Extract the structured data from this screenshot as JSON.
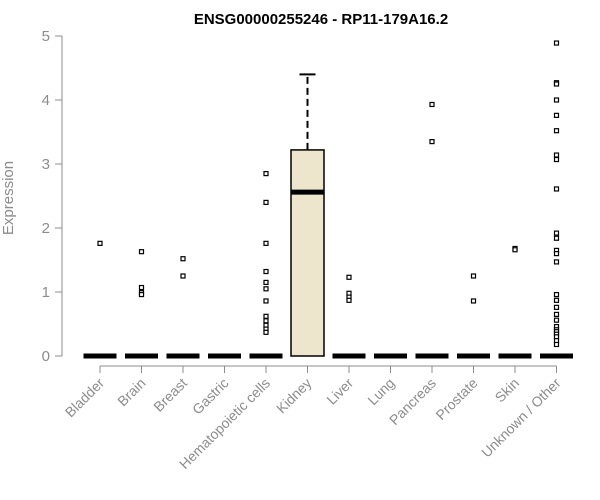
{
  "chart_data": {
    "type": "box",
    "title": "ENSG00000255246 - RP11-179A16.2",
    "ylabel": "Expression",
    "xlabel": "",
    "ylim": [
      0,
      5
    ],
    "yticks": [
      0,
      1,
      2,
      3,
      4,
      5
    ],
    "grid": false,
    "categories": [
      "Bladder",
      "Brain",
      "Breast",
      "Gastric",
      "Hematopoietic cells",
      "Kidney",
      "Liver",
      "Lung",
      "Pancreas",
      "Prostate",
      "Skin",
      "Unknown / Other"
    ],
    "boxes": [
      {
        "category": "Bladder",
        "min": 0,
        "q1": 0,
        "median": 0,
        "q3": 0,
        "max": 0,
        "outliers": [
          1.76
        ]
      },
      {
        "category": "Brain",
        "min": 0,
        "q1": 0,
        "median": 0,
        "q3": 0,
        "max": 0,
        "outliers": [
          1.63,
          1.07,
          0.99,
          0.96
        ]
      },
      {
        "category": "Breast",
        "min": 0,
        "q1": 0,
        "median": 0,
        "q3": 0,
        "max": 0,
        "outliers": [
          1.52,
          1.25
        ]
      },
      {
        "category": "Gastric",
        "min": 0,
        "q1": 0,
        "median": 0,
        "q3": 0,
        "max": 0,
        "outliers": []
      },
      {
        "category": "Hematopoietic cells",
        "min": 0,
        "q1": 0,
        "median": 0,
        "q3": 0,
        "max": 0,
        "outliers": [
          2.85,
          2.4,
          1.76,
          1.32,
          1.15,
          1.05,
          0.86,
          0.62,
          0.55,
          0.48,
          0.42,
          0.37
        ]
      },
      {
        "category": "Kidney",
        "min": 0,
        "q1": 0,
        "median": 2.56,
        "q3": 3.22,
        "max": 4.4,
        "outliers": []
      },
      {
        "category": "Liver",
        "min": 0,
        "q1": 0,
        "median": 0,
        "q3": 0,
        "max": 0,
        "outliers": [
          1.23,
          0.98,
          0.92,
          0.87
        ]
      },
      {
        "category": "Lung",
        "min": 0,
        "q1": 0,
        "median": 0,
        "q3": 0,
        "max": 0,
        "outliers": []
      },
      {
        "category": "Pancreas",
        "min": 0,
        "q1": 0,
        "median": 0,
        "q3": 0,
        "max": 0,
        "outliers": [
          3.93,
          3.35
        ]
      },
      {
        "category": "Prostate",
        "min": 0,
        "q1": 0,
        "median": 0,
        "q3": 0,
        "max": 0,
        "outliers": [
          1.25,
          0.86
        ]
      },
      {
        "category": "Skin",
        "min": 0,
        "q1": 0,
        "median": 0,
        "q3": 0,
        "max": 0,
        "outliers": [
          1.68,
          1.66
        ]
      },
      {
        "category": "Unknown / Other",
        "min": 0,
        "q1": 0,
        "median": 0,
        "q3": 0,
        "max": 0,
        "outliers": [
          4.89,
          4.27,
          4.25,
          4.0,
          3.76,
          3.52,
          3.14,
          3.07,
          2.61,
          1.92,
          1.84,
          1.65,
          1.6,
          1.47,
          0.96,
          0.87,
          0.76,
          0.65,
          0.56,
          0.46,
          0.41,
          0.38,
          0.34,
          0.3,
          0.24,
          0.18
        ]
      }
    ],
    "colors": {
      "box_fill": "#ede6cd",
      "box_stroke": "#000000",
      "axis": "#8c8c8c",
      "points": "#000000"
    }
  }
}
